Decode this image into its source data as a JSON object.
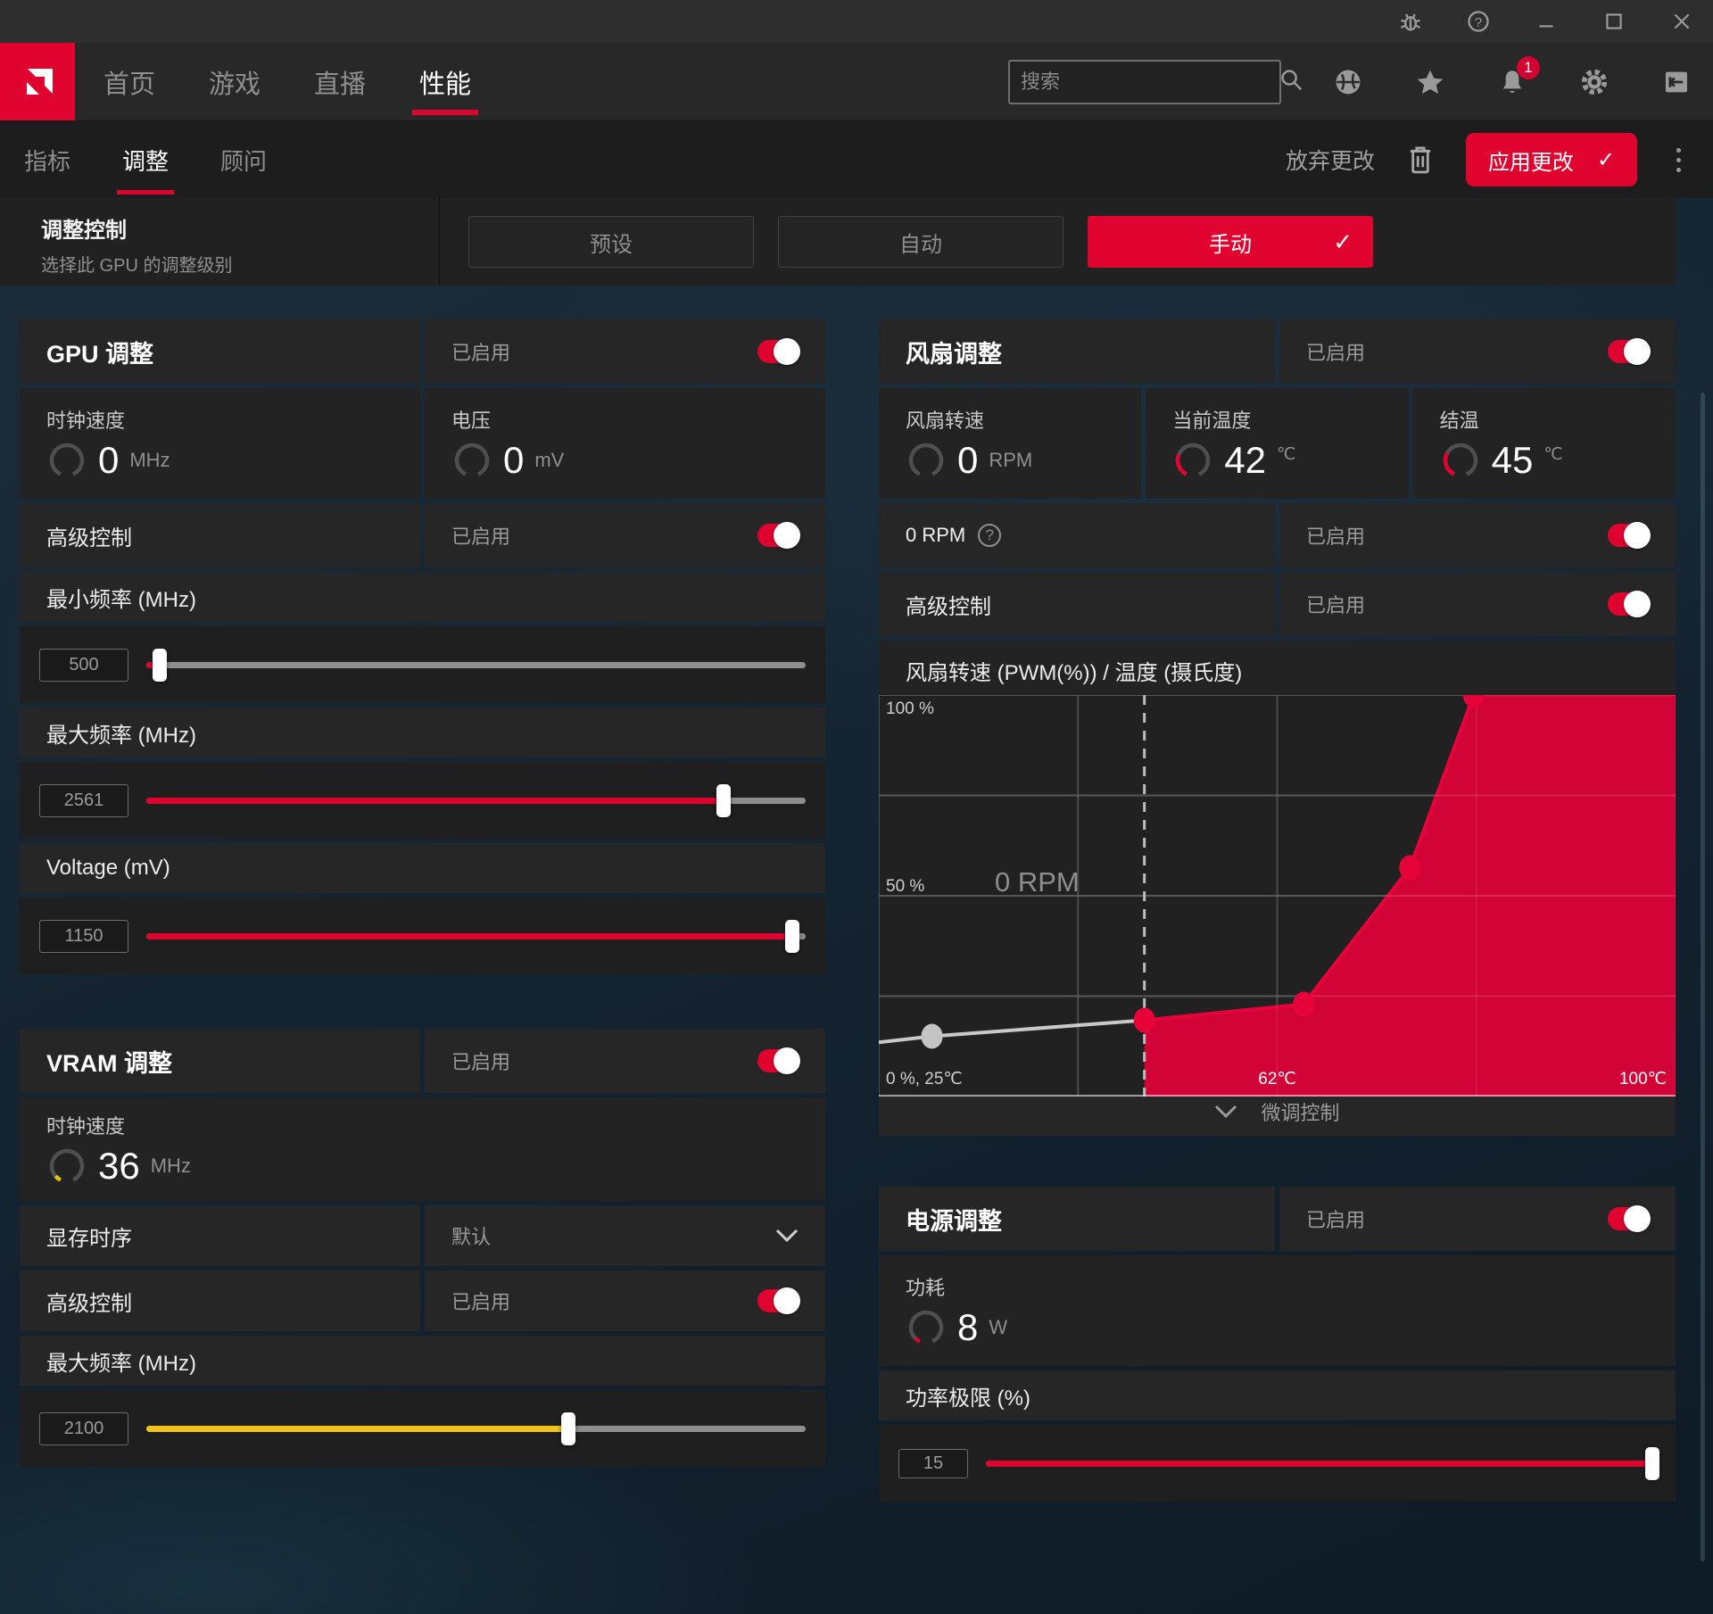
{
  "nav": {
    "items": [
      "首页",
      "游戏",
      "直播",
      "性能"
    ],
    "active": "性能",
    "search_placeholder": "搜索",
    "notification_count": "1"
  },
  "subnav": {
    "items": [
      "指标",
      "调整",
      "顾问"
    ],
    "active": "调整",
    "discard_label": "放弃更改",
    "apply_label": "应用更改"
  },
  "tuning_control": {
    "title": "调整控制",
    "subtitle": "选择此 GPU 的调整级别",
    "options": [
      "预设",
      "自动",
      "手动"
    ],
    "selected": "手动"
  },
  "common": {
    "enabled": "已启用"
  },
  "gpu_card": {
    "title": "GPU 调整",
    "clock": {
      "label": "时钟速度",
      "value": "0",
      "unit": "MHz"
    },
    "voltage": {
      "label": "电压",
      "value": "0",
      "unit": "mV"
    },
    "advanced_label": "高级控制",
    "min_freq": {
      "label": "最小频率 (MHz)",
      "value": "500",
      "fill_pct": 2,
      "color": "#e0032f"
    },
    "max_freq": {
      "label": "最大频率 (MHz)",
      "value": "2561",
      "fill_pct": 87.5,
      "color": "#e0032f"
    },
    "voltage_slider": {
      "label": "Voltage (mV)",
      "value": "1150",
      "fill_pct": 98,
      "color": "#e0032f"
    }
  },
  "vram_card": {
    "title": "VRAM 调整",
    "clock": {
      "label": "时钟速度",
      "value": "36",
      "unit": "MHz"
    },
    "timing_label": "显存时序",
    "timing_value": "默认",
    "advanced_label": "高级控制",
    "max_freq": {
      "label": "最大频率 (MHz)",
      "value": "2100",
      "fill_pct": 64,
      "color": "#f2c318"
    }
  },
  "fan_card": {
    "title": "风扇调整",
    "fan_speed": {
      "label": "风扇转速",
      "value": "0",
      "unit": "RPM"
    },
    "current_temp": {
      "label": "当前温度",
      "value": "42",
      "unit": "℃"
    },
    "junction_temp": {
      "label": "结温",
      "value": "45",
      "unit": "℃"
    },
    "zero_rpm_label": "0 RPM",
    "advanced_label": "高级控制",
    "fine_tune_label": "微调控制"
  },
  "power_card": {
    "title": "电源调整",
    "power": {
      "label": "功耗",
      "value": "8",
      "unit": "W"
    },
    "limit": {
      "label": "功率极限 (%)",
      "value": "15",
      "fill_pct": 99.5,
      "color": "#e0032f"
    }
  },
  "chart_data": {
    "type": "area",
    "title": "风扇转速 (PWM(%)) / 温度 (摄氏度)",
    "xlabel": "温度 (摄氏度)",
    "ylabel": "风扇转速 PWM (%)",
    "x_range": [
      25,
      100
    ],
    "y_range": [
      0,
      100
    ],
    "y_axis_labels": [
      "100 %",
      "50 %"
    ],
    "x_axis_labels": [
      "0 %, 25℃",
      "62℃",
      "100℃"
    ],
    "annotation": "0 RPM",
    "dashed_line_x": 50,
    "grid": true,
    "legend": "none",
    "series": [
      {
        "name": "zero-rpm-zone",
        "color": "#c9c9c9",
        "dot_color": "#c4c4c4",
        "fill": false,
        "points": [
          [
            25,
            13.5
          ],
          [
            30,
            15
          ],
          [
            50,
            19
          ]
        ],
        "dots": [
          [
            30,
            15
          ]
        ]
      },
      {
        "name": "fan-curve",
        "color": "#e50339",
        "fill_color": "#d20337",
        "dot_color": "#e50339",
        "fill": true,
        "points": [
          [
            50,
            19
          ],
          [
            65,
            23
          ],
          [
            75,
            57
          ],
          [
            81,
            100
          ],
          [
            100,
            100
          ]
        ],
        "dots": [
          [
            50,
            19
          ],
          [
            65,
            23
          ],
          [
            75,
            57
          ],
          [
            81,
            100
          ]
        ]
      }
    ]
  }
}
